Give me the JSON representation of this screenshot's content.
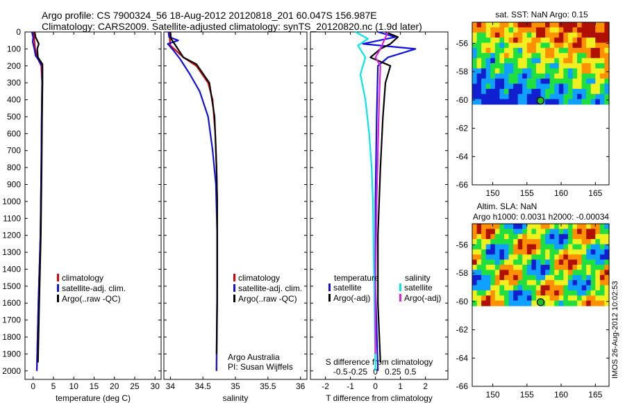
{
  "header": {
    "line1": "Argo profile: CS 7900324_56 18-Aug-2012 20120818_201 60.047S 156.987E",
    "line2": "Climatology: CARS2009. Satellite-adjusted climatology: synTS_20120820.nc (1.9d later)"
  },
  "colors": {
    "climatology": "#e00000",
    "satellite": "#1010e0",
    "argo": "#000000",
    "satellite_salinity": "#00e8e8",
    "argo_adj_salinity": "#e020e0"
  },
  "depth_ticks": [
    0,
    100,
    200,
    300,
    400,
    500,
    600,
    700,
    800,
    900,
    1000,
    1100,
    1200,
    1300,
    1400,
    1500,
    1600,
    1700,
    1800,
    1900,
    2000
  ],
  "chart_data": [
    {
      "type": "line",
      "xlabel": "temperature (deg C)",
      "xticks": [
        0,
        5,
        10,
        15,
        20,
        25,
        30
      ],
      "xlim": [
        -2,
        31.5
      ],
      "ylim": [
        2050,
        0
      ],
      "legend": [
        "climatology",
        "satellite-adj. clim.",
        "Argo(..raw -QC)"
      ],
      "series": [
        {
          "name": "climatology",
          "points": [
            [
              0.2,
              0
            ],
            [
              0.3,
              50
            ],
            [
              0.5,
              100
            ],
            [
              1.0,
              150
            ],
            [
              2.0,
              200
            ],
            [
              2.2,
              300
            ],
            [
              2.1,
              500
            ],
            [
              2.0,
              800
            ],
            [
              1.8,
              1200
            ],
            [
              1.3,
              1600
            ],
            [
              0.9,
              2000
            ]
          ]
        },
        {
          "name": "satellite-adj. clim.",
          "points": [
            [
              -0.3,
              0
            ],
            [
              0.0,
              30
            ],
            [
              -0.1,
              60
            ],
            [
              0.3,
              100
            ],
            [
              0.6,
              140
            ],
            [
              1.5,
              170
            ],
            [
              2.2,
              200
            ],
            [
              2.2,
              300
            ],
            [
              2.1,
              500
            ],
            [
              2.0,
              800
            ],
            [
              1.8,
              1200
            ],
            [
              1.3,
              1600
            ],
            [
              0.9,
              2000
            ]
          ]
        },
        {
          "name": "Argo(..raw -QC)",
          "points": [
            [
              0.4,
              0
            ],
            [
              0.6,
              30
            ],
            [
              1.4,
              70
            ],
            [
              1.0,
              100
            ],
            [
              1.2,
              150
            ],
            [
              2.3,
              190
            ],
            [
              2.3,
              300
            ],
            [
              2.2,
              500
            ],
            [
              2.1,
              800
            ],
            [
              1.9,
              1200
            ],
            [
              1.5,
              1600
            ],
            [
              1.2,
              1950
            ]
          ]
        }
      ]
    },
    {
      "type": "line",
      "xlabel": "salinity",
      "xticks": [
        34,
        34.5,
        35,
        35.5,
        36
      ],
      "xlim": [
        33.9,
        36.1
      ],
      "ylim": [
        2050,
        0
      ],
      "legend": [
        "climatology",
        "satellite-adj. clim.",
        "Argo(..raw -QC)"
      ],
      "series": [
        {
          "name": "climatology",
          "points": [
            [
              33.98,
              0
            ],
            [
              34.0,
              80
            ],
            [
              34.2,
              150
            ],
            [
              34.4,
              200
            ],
            [
              34.58,
              300
            ],
            [
              34.65,
              400
            ],
            [
              34.69,
              600
            ],
            [
              34.71,
              800
            ],
            [
              34.72,
              1000
            ],
            [
              34.72,
              1500
            ],
            [
              34.71,
              2000
            ]
          ]
        },
        {
          "name": "satellite-adj. clim.",
          "points": [
            [
              33.97,
              0
            ],
            [
              33.98,
              30
            ],
            [
              34.12,
              50
            ],
            [
              33.96,
              70
            ],
            [
              34.05,
              110
            ],
            [
              34.15,
              160
            ],
            [
              34.3,
              250
            ],
            [
              34.45,
              350
            ],
            [
              34.58,
              500
            ],
            [
              34.65,
              700
            ],
            [
              34.7,
              900
            ],
            [
              34.72,
              1200
            ],
            [
              34.72,
              1600
            ],
            [
              34.71,
              2000
            ]
          ]
        },
        {
          "name": "Argo(..raw -QC)",
          "points": [
            [
              34.0,
              0
            ],
            [
              34.01,
              40
            ],
            [
              34.08,
              80
            ],
            [
              34.2,
              150
            ],
            [
              34.4,
              190
            ],
            [
              34.6,
              300
            ],
            [
              34.68,
              500
            ],
            [
              34.71,
              800
            ],
            [
              34.72,
              1000
            ],
            [
              34.72,
              1500
            ],
            [
              34.71,
              1900
            ]
          ]
        }
      ]
    },
    {
      "type": "line",
      "xlabel": "T difference from climatology",
      "top_xlabel": "S difference from climatology",
      "xticks": [
        -2,
        -1,
        0,
        1,
        2
      ],
      "top_xticks": [
        "-0.5",
        "-0.25",
        "0",
        "0.25",
        "0.5"
      ],
      "xlim": [
        -2.6,
        2.9
      ],
      "ylim": [
        2050,
        0
      ],
      "legend_headers": [
        "temperature",
        "salinity"
      ],
      "legend": [
        "satellite",
        "Argo(-adj)",
        "satellite",
        "Argo(-adj)"
      ],
      "series": [
        {
          "name": "satellite",
          "points": [
            [
              0.1,
              0
            ],
            [
              0.8,
              30
            ],
            [
              -0.5,
              70
            ],
            [
              1.6,
              100
            ],
            [
              0.5,
              150
            ],
            [
              0.1,
              200
            ],
            [
              0.05,
              500
            ],
            [
              0.0,
              1000
            ],
            [
              0.0,
              1500
            ],
            [
              0.1,
              2000
            ]
          ]
        },
        {
          "name": "Argo(-adj)",
          "points": [
            [
              0.4,
              0
            ],
            [
              0.9,
              30
            ],
            [
              0.6,
              70
            ],
            [
              0.2,
              100
            ],
            [
              -0.2,
              150
            ],
            [
              0.6,
              200
            ],
            [
              0.4,
              300
            ],
            [
              0.3,
              500
            ],
            [
              0.2,
              800
            ],
            [
              0.1,
              1200
            ],
            [
              0.1,
              1600
            ],
            [
              0.2,
              1950
            ]
          ]
        },
        {
          "name": "satellite",
          "points": [
            [
              -0.8,
              0
            ],
            [
              -0.3,
              40
            ],
            [
              -0.7,
              80
            ],
            [
              -0.4,
              150
            ],
            [
              -0.6,
              250
            ],
            [
              -0.4,
              400
            ],
            [
              -0.25,
              600
            ],
            [
              -0.15,
              800
            ],
            [
              -0.1,
              1000
            ],
            [
              -0.05,
              1500
            ],
            [
              0.0,
              2000
            ]
          ]
        },
        {
          "name": "Argo(-adj)",
          "points": [
            [
              0.5,
              0
            ],
            [
              0.2,
              100
            ],
            [
              0.0,
              150
            ],
            [
              0.2,
              200
            ],
            [
              0.15,
              400
            ],
            [
              0.1,
              700
            ],
            [
              0.05,
              1000
            ],
            [
              0.0,
              1500
            ],
            [
              0.0,
              1900
            ]
          ]
        }
      ]
    },
    {
      "type": "heatmap",
      "title": "sat. SST: NaN Argo: 0.15",
      "xticks": [
        150,
        155,
        160,
        165
      ],
      "yticks": [
        -56,
        -58,
        -60,
        -62,
        -64,
        -66
      ],
      "xlim": [
        147,
        167
      ],
      "ylim": [
        -66,
        -54.5
      ],
      "data_ylim": [
        -60.3,
        -54.5
      ],
      "argo_position": {
        "lon": 156.987,
        "lat": -60.047
      },
      "palette": [
        "#1020d0",
        "#10a0ff",
        "#20e040",
        "#f0f020",
        "#ff9000",
        "#b01000"
      ]
    },
    {
      "type": "heatmap",
      "title_line1": "Altim. SLA: NaN",
      "title_line2": "Argo h1000: 0.0031 h2000: -0.00034",
      "xticks": [
        150,
        155,
        160,
        165
      ],
      "yticks": [
        -56,
        -58,
        -60,
        -62,
        -64,
        -66
      ],
      "xlim": [
        147,
        167
      ],
      "ylim": [
        -66,
        -54.5
      ],
      "data_ylim": [
        -60.3,
        -54.5
      ],
      "argo_position": {
        "lon": 156.987,
        "lat": -60.047
      },
      "palette": [
        "#1020d0",
        "#10a0ff",
        "#20e040",
        "#f0f020",
        "#ff9000",
        "#b01000"
      ]
    }
  ],
  "footer_stamp": "IMOS 26-Aug-2012 10:02:53"
}
